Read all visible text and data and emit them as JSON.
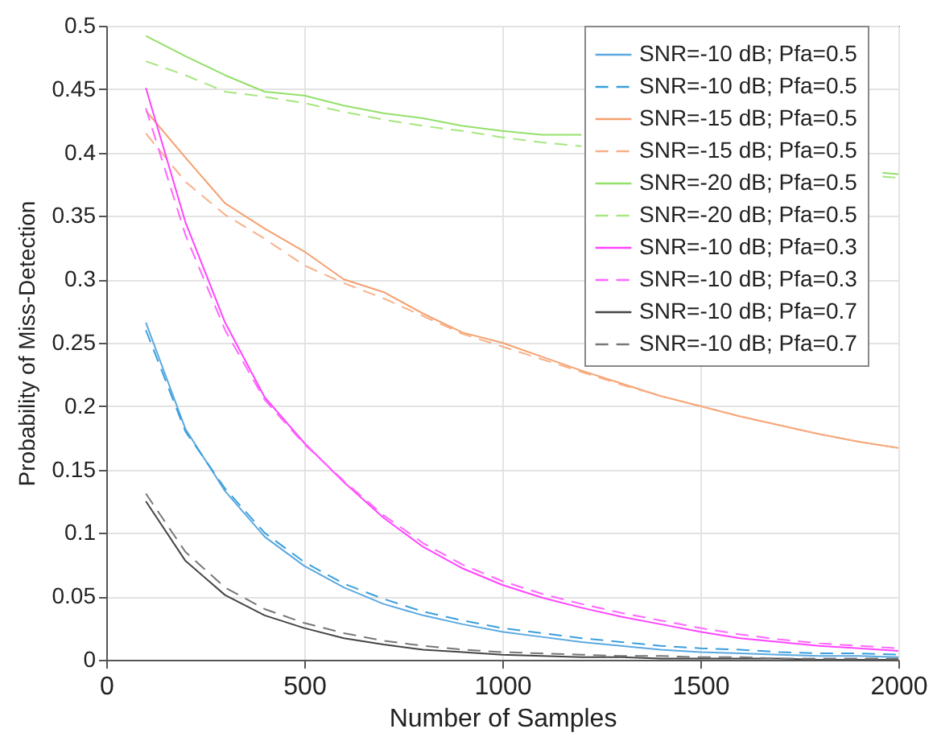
{
  "chart_data": {
    "type": "line",
    "xlabel": "Number of Samples",
    "ylabel": "Probability of Miss-Detection",
    "x": [
      100,
      200,
      300,
      400,
      500,
      600,
      700,
      800,
      900,
      1000,
      1100,
      1200,
      1300,
      1400,
      1500,
      1600,
      1700,
      1800,
      1900,
      2000
    ],
    "xlim": [
      0,
      2000
    ],
    "xticks": [
      0,
      500,
      1000,
      1500,
      2000
    ],
    "ylim": [
      0,
      0.5
    ],
    "yticks": [
      0,
      0.05,
      0.1,
      0.15,
      0.2,
      0.25,
      0.3,
      0.35,
      0.4,
      0.45,
      0.5
    ],
    "grid": true,
    "legend": "top right",
    "series": [
      {
        "name": "SNR=-10 dB; Pfa=0.5",
        "color": "#5aa9e0",
        "line_style": "solid",
        "values": [
          0.266,
          0.182,
          0.133,
          0.097,
          0.074,
          0.057,
          0.044,
          0.035,
          0.028,
          0.022,
          0.018,
          0.014,
          0.011,
          0.008,
          0.006,
          0.005,
          0.004,
          0.003,
          0.003,
          0.002
        ]
      },
      {
        "name": "SNR=-10 dB; Pfa=0.5",
        "color": "#3a9fdc",
        "line_style": "dashed",
        "values": [
          0.26,
          0.18,
          0.135,
          0.1,
          0.077,
          0.06,
          0.048,
          0.038,
          0.031,
          0.025,
          0.021,
          0.017,
          0.014,
          0.011,
          0.009,
          0.008,
          0.006,
          0.005,
          0.005,
          0.004
        ]
      },
      {
        "name": "SNR=-15 dB; Pfa=0.5",
        "color": "#f4a06f",
        "line_style": "solid",
        "values": [
          0.433,
          0.396,
          0.36,
          0.34,
          0.322,
          0.3,
          0.29,
          0.273,
          0.258,
          0.25,
          0.239,
          0.228,
          0.218,
          0.208,
          0.2,
          0.192,
          0.185,
          0.178,
          0.172,
          0.167
        ]
      },
      {
        "name": "SNR=-15 dB; Pfa=0.5",
        "color": "#f7b088",
        "line_style": "dashed",
        "values": [
          0.415,
          0.377,
          0.351,
          0.332,
          0.311,
          0.297,
          0.285,
          0.271,
          0.257,
          0.247,
          0.237,
          0.227,
          0.217,
          0.208,
          0.2,
          0.192,
          0.185,
          0.178,
          0.172,
          0.167
        ]
      },
      {
        "name": "SNR=-20 dB; Pfa=0.5",
        "color": "#93e06a",
        "line_style": "solid",
        "x": [
          100,
          200,
          300,
          400,
          500,
          600,
          700,
          800,
          900,
          1000,
          1100,
          1200,
          1300,
          1960,
          2000
        ],
        "values": [
          0.492,
          0.476,
          0.461,
          0.448,
          0.445,
          0.437,
          0.431,
          0.427,
          0.421,
          0.417,
          0.414,
          0.414,
          null,
          0.384,
          0.383
        ]
      },
      {
        "name": "SNR=-20 dB; Pfa=0.5",
        "color": "#a6e67e",
        "line_style": "dashed",
        "x": [
          100,
          200,
          300,
          400,
          500,
          600,
          700,
          800,
          900,
          1000,
          1100,
          1200,
          1300,
          1960,
          2000
        ],
        "values": [
          0.472,
          0.461,
          0.448,
          0.444,
          0.439,
          0.432,
          0.426,
          0.421,
          0.417,
          0.412,
          0.408,
          0.405,
          null,
          0.381,
          0.38
        ]
      },
      {
        "name": "SNR=-10 dB; Pfa=0.3",
        "color": "#ff44ff",
        "line_style": "solid",
        "values": [
          0.451,
          0.345,
          0.266,
          0.207,
          0.171,
          0.14,
          0.112,
          0.089,
          0.072,
          0.059,
          0.049,
          0.041,
          0.034,
          0.028,
          0.022,
          0.017,
          0.014,
          0.011,
          0.009,
          0.007
        ]
      },
      {
        "name": "SNR=-10 dB; Pfa=0.3",
        "color": "#ff66ff",
        "line_style": "dashed",
        "values": [
          0.435,
          0.335,
          0.26,
          0.205,
          0.17,
          0.141,
          0.114,
          0.092,
          0.075,
          0.062,
          0.052,
          0.044,
          0.037,
          0.031,
          0.025,
          0.02,
          0.016,
          0.013,
          0.011,
          0.009
        ]
      },
      {
        "name": "SNR=-10 dB; Pfa=0.7",
        "color": "#444444",
        "line_style": "solid",
        "values": [
          0.125,
          0.078,
          0.051,
          0.035,
          0.025,
          0.017,
          0.012,
          0.008,
          0.006,
          0.004,
          0.003,
          0.002,
          0.002,
          0.001,
          0.001,
          0.001,
          0.001,
          0.0,
          0.0,
          0.0
        ]
      },
      {
        "name": "SNR=-10 dB; Pfa=0.7",
        "color": "#777777",
        "line_style": "dashed",
        "values": [
          0.131,
          0.085,
          0.057,
          0.04,
          0.029,
          0.021,
          0.015,
          0.011,
          0.008,
          0.006,
          0.005,
          0.004,
          0.003,
          0.003,
          0.002,
          0.002,
          0.001,
          0.001,
          0.001,
          0.001
        ]
      }
    ]
  }
}
